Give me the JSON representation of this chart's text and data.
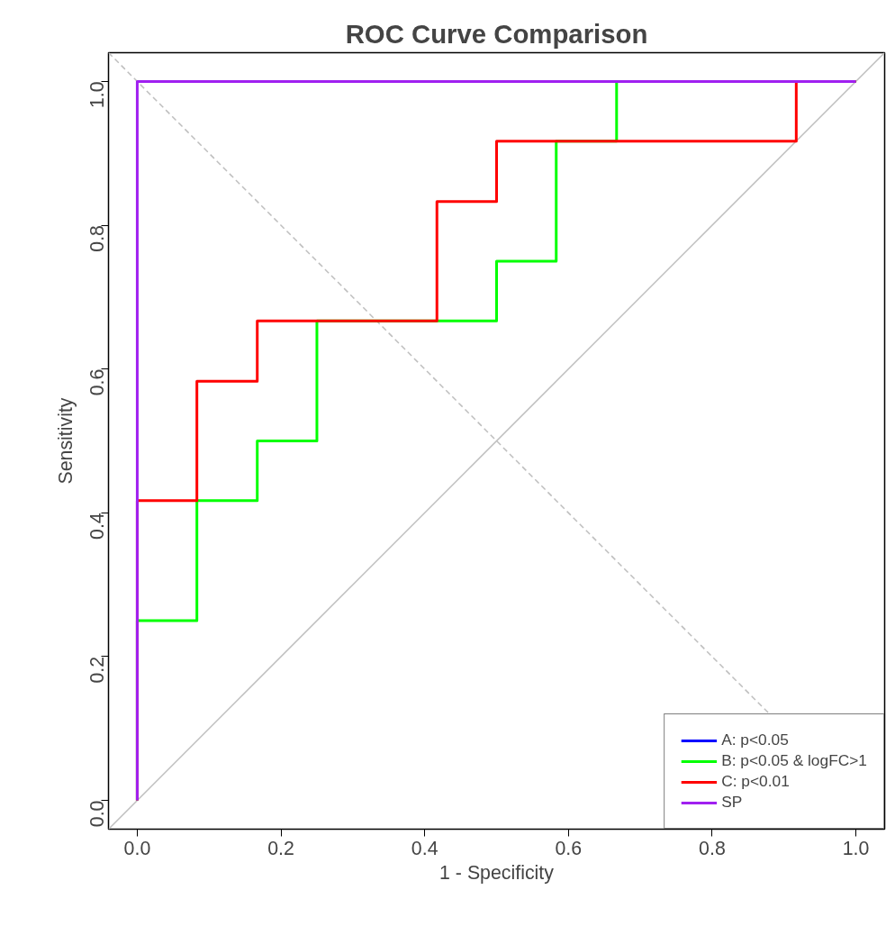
{
  "chart_data": {
    "type": "line",
    "title": "ROC Curve Comparison",
    "xlabel": "1 - Specificity",
    "ylabel": "Sensitivity",
    "xlim": [
      -0.04,
      1.04
    ],
    "ylim": [
      -0.04,
      1.04
    ],
    "xticks": [
      {
        "value": 0,
        "label": "0.0"
      },
      0.2,
      0.4,
      0.6,
      0.8,
      {
        "value": 1,
        "label": "1.0"
      }
    ],
    "yticks": [
      {
        "value": 0,
        "label": "0.0"
      },
      0.2,
      0.4,
      0.6,
      0.8,
      {
        "value": 1,
        "label": "1.0"
      }
    ],
    "grid": false,
    "legend": "bottom right",
    "marker": "none",
    "series": [
      {
        "color": "#bebebe",
        "line_style": "solid",
        "x": [
          -0.04,
          1.04
        ],
        "values": [
          -0.04,
          1.04
        ]
      },
      {
        "color": "#bebebe",
        "line_style": "dashed",
        "x": [
          -0.04,
          1.04
        ],
        "values": [
          1.04,
          -0.04
        ]
      },
      {
        "name": "A: p<0.05",
        "color": "#0000ff"
      },
      {
        "name": "B: p<0.05 & logFC>1",
        "color": "#00ff00",
        "x": [
          0,
          0,
          0.083,
          0.083,
          0.167,
          0.167,
          0.25,
          0.25,
          0.5,
          0.5,
          0.583,
          0.583,
          0.667,
          0.667,
          1
        ],
        "values": [
          0,
          0.25,
          0.25,
          0.417,
          0.417,
          0.5,
          0.5,
          0.667,
          0.667,
          0.75,
          0.75,
          0.917,
          0.917,
          1,
          1
        ]
      },
      {
        "name": "C: p<0.01",
        "color": "#ff0000",
        "x": [
          0,
          0,
          0.083,
          0.083,
          0.167,
          0.167,
          0.417,
          0.417,
          0.5,
          0.5,
          0.917,
          0.917,
          1
        ],
        "values": [
          0,
          0.417,
          0.417,
          0.583,
          0.583,
          0.667,
          0.667,
          0.833,
          0.833,
          0.917,
          0.917,
          1,
          1
        ]
      },
      {
        "name": "SP",
        "color": "#a020f0",
        "x": [
          0,
          0,
          1
        ],
        "values": [
          0,
          1,
          1
        ]
      }
    ]
  }
}
